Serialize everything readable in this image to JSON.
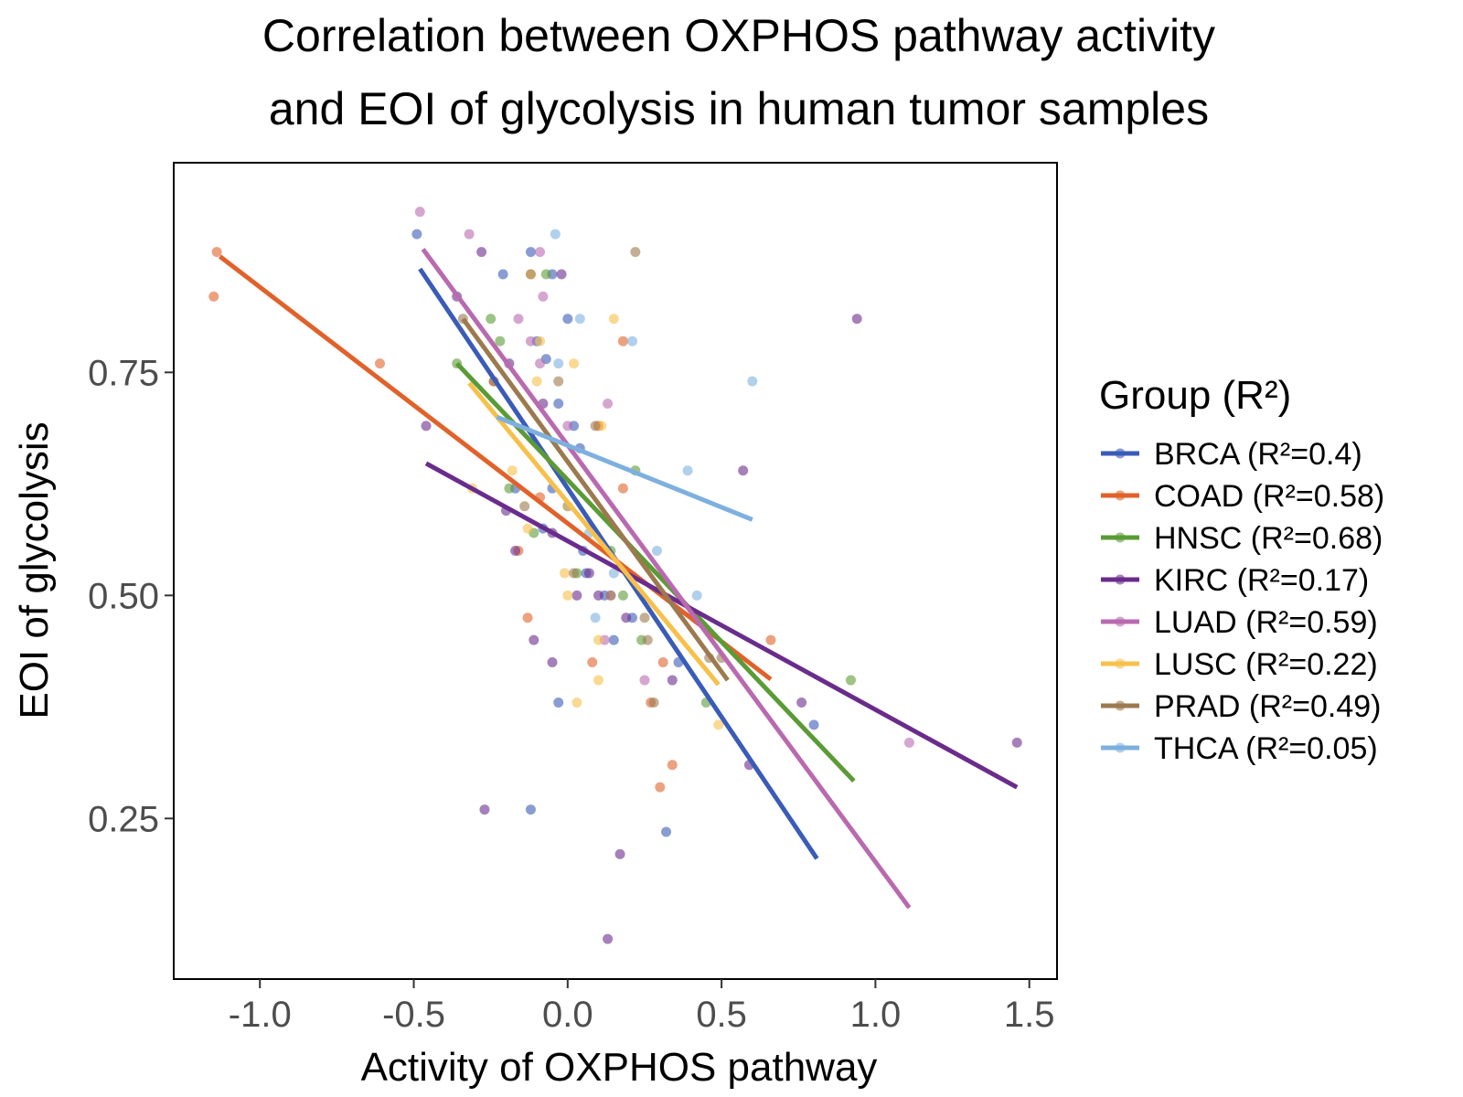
{
  "chart_data": {
    "type": "scatter",
    "title_lines": [
      "Correlation between OXPHOS pathway activity",
      "and EOI of glycolysis in human tumor samples"
    ],
    "xlabel": "Activity of OXPHOS pathway",
    "ylabel": "EOI of glycolysis",
    "xlim": [
      -1.28,
      1.59
    ],
    "ylim": [
      0.07,
      0.985
    ],
    "x_ticks": [
      -1.0,
      -0.5,
      0.0,
      0.5,
      1.0,
      1.5
    ],
    "x_tick_labels": [
      "-1.0",
      "-0.5",
      "0.0",
      "0.5",
      "1.0",
      "1.5"
    ],
    "y_ticks": [
      0.25,
      0.5,
      0.75
    ],
    "y_tick_labels": [
      "0.25",
      "0.50",
      "0.75"
    ],
    "grid": false,
    "legend_title": "Group (R²)",
    "legend_position": "right",
    "series": [
      {
        "name": "BRCA (R²=0.4)",
        "color": "#3a5cb8",
        "fit": [
          [
            -0.48,
            0.866
          ],
          [
            0.81,
            0.205
          ]
        ],
        "points": [
          [
            -0.49,
            0.905
          ],
          [
            -0.12,
            0.885
          ],
          [
            -0.21,
            0.86
          ],
          [
            -0.05,
            0.86
          ],
          [
            0.0,
            0.81
          ],
          [
            -0.1,
            0.785
          ],
          [
            -0.07,
            0.765
          ],
          [
            -0.03,
            0.715
          ],
          [
            0.02,
            0.69
          ],
          [
            0.04,
            0.665
          ],
          [
            -0.05,
            0.62
          ],
          [
            -0.17,
            0.62
          ],
          [
            0.0,
            0.6
          ],
          [
            -0.08,
            0.575
          ],
          [
            0.05,
            0.55
          ],
          [
            0.06,
            0.525
          ],
          [
            0.12,
            0.5
          ],
          [
            0.15,
            0.45
          ],
          [
            0.21,
            0.475
          ],
          [
            0.36,
            0.425
          ],
          [
            -0.03,
            0.38
          ],
          [
            0.8,
            0.355
          ],
          [
            -0.12,
            0.26
          ],
          [
            0.32,
            0.235
          ]
        ]
      },
      {
        "name": "COAD (R²=0.58)",
        "color": "#e0622a",
        "fit": [
          [
            -1.13,
            0.88
          ],
          [
            0.66,
            0.406
          ]
        ],
        "points": [
          [
            -1.14,
            0.885
          ],
          [
            -1.15,
            0.835
          ],
          [
            -0.61,
            0.76
          ],
          [
            -0.24,
            0.74
          ],
          [
            -0.09,
            0.61
          ],
          [
            -0.16,
            0.55
          ],
          [
            0.1,
            0.69
          ],
          [
            0.18,
            0.785
          ],
          [
            0.18,
            0.62
          ],
          [
            -0.13,
            0.475
          ],
          [
            0.08,
            0.425
          ],
          [
            0.27,
            0.38
          ],
          [
            0.31,
            0.425
          ],
          [
            0.66,
            0.45
          ],
          [
            0.34,
            0.31
          ],
          [
            0.3,
            0.285
          ]
        ]
      },
      {
        "name": "HNSC (R²=0.68)",
        "color": "#5b9b36",
        "fit": [
          [
            -0.36,
            0.76
          ],
          [
            0.93,
            0.292
          ]
        ],
        "points": [
          [
            -0.36,
            0.76
          ],
          [
            -0.25,
            0.81
          ],
          [
            -0.22,
            0.785
          ],
          [
            -0.07,
            0.86
          ],
          [
            -0.19,
            0.62
          ],
          [
            -0.11,
            0.57
          ],
          [
            0.03,
            0.525
          ],
          [
            0.18,
            0.5
          ],
          [
            0.14,
            0.55
          ],
          [
            0.22,
            0.64
          ],
          [
            0.24,
            0.45
          ],
          [
            0.45,
            0.38
          ],
          [
            0.92,
            0.405
          ]
        ]
      },
      {
        "name": "KIRC (R²=0.17)",
        "color": "#6a2c8c",
        "fit": [
          [
            -0.46,
            0.648
          ],
          [
            1.46,
            0.285
          ]
        ],
        "points": [
          [
            -0.28,
            0.885
          ],
          [
            -0.36,
            0.835
          ],
          [
            -0.46,
            0.69
          ],
          [
            -0.19,
            0.76
          ],
          [
            -0.08,
            0.715
          ],
          [
            -0.02,
            0.86
          ],
          [
            -0.2,
            0.595
          ],
          [
            -0.17,
            0.55
          ],
          [
            -0.05,
            0.57
          ],
          [
            0.07,
            0.525
          ],
          [
            0.1,
            0.5
          ],
          [
            0.19,
            0.475
          ],
          [
            0.03,
            0.5
          ],
          [
            -0.11,
            0.45
          ],
          [
            -0.05,
            0.425
          ],
          [
            0.34,
            0.405
          ],
          [
            0.57,
            0.64
          ],
          [
            0.59,
            0.31
          ],
          [
            0.76,
            0.38
          ],
          [
            0.94,
            0.81
          ],
          [
            1.46,
            0.335
          ],
          [
            -0.27,
            0.26
          ],
          [
            0.17,
            0.21
          ],
          [
            0.13,
            0.115
          ]
        ]
      },
      {
        "name": "LUAD (R²=0.59)",
        "color": "#b96aaf",
        "fit": [
          [
            -0.47,
            0.888
          ],
          [
            1.11,
            0.15
          ]
        ],
        "points": [
          [
            -0.48,
            0.93
          ],
          [
            -0.32,
            0.905
          ],
          [
            -0.09,
            0.885
          ],
          [
            -0.08,
            0.835
          ],
          [
            -0.16,
            0.81
          ],
          [
            -0.12,
            0.785
          ],
          [
            -0.09,
            0.76
          ],
          [
            0.13,
            0.715
          ],
          [
            0.0,
            0.69
          ],
          [
            0.12,
            0.45
          ],
          [
            0.14,
            0.5
          ],
          [
            0.25,
            0.405
          ],
          [
            1.11,
            0.335
          ]
        ]
      },
      {
        "name": "LUSC (R²=0.22)",
        "color": "#f7c04a",
        "fit": [
          [
            -0.32,
            0.738
          ],
          [
            0.49,
            0.4
          ]
        ],
        "points": [
          [
            -0.12,
            0.86
          ],
          [
            -0.09,
            0.785
          ],
          [
            -0.1,
            0.74
          ],
          [
            0.15,
            0.81
          ],
          [
            0.02,
            0.76
          ],
          [
            -0.31,
            0.62
          ],
          [
            -0.18,
            0.64
          ],
          [
            0.11,
            0.69
          ],
          [
            0.0,
            0.6
          ],
          [
            -0.01,
            0.525
          ],
          [
            0.0,
            0.5
          ],
          [
            0.03,
            0.38
          ],
          [
            0.1,
            0.45
          ],
          [
            0.1,
            0.405
          ],
          [
            0.49,
            0.355
          ],
          [
            -0.13,
            0.575
          ]
        ]
      },
      {
        "name": "PRAD (R²=0.49)",
        "color": "#9c7a4e",
        "fit": [
          [
            -0.34,
            0.81
          ],
          [
            0.52,
            0.405
          ]
        ],
        "points": [
          [
            -0.34,
            0.81
          ],
          [
            -0.24,
            0.74
          ],
          [
            -0.03,
            0.74
          ],
          [
            -0.12,
            0.86
          ],
          [
            -0.14,
            0.6
          ],
          [
            0.02,
            0.525
          ],
          [
            0.09,
            0.69
          ],
          [
            0.25,
            0.475
          ],
          [
            0.26,
            0.45
          ],
          [
            0.28,
            0.38
          ],
          [
            0.46,
            0.43
          ],
          [
            0.5,
            0.43
          ],
          [
            0.22,
            0.885
          ],
          [
            0.14,
            0.5
          ]
        ]
      },
      {
        "name": "THCA (R²=0.05)",
        "color": "#7db0df",
        "fit": [
          [
            -0.23,
            0.7
          ],
          [
            0.6,
            0.585
          ]
        ],
        "points": [
          [
            -0.04,
            0.905
          ],
          [
            0.04,
            0.81
          ],
          [
            0.21,
            0.785
          ],
          [
            -0.03,
            0.76
          ],
          [
            0.6,
            0.74
          ],
          [
            0.39,
            0.64
          ],
          [
            0.29,
            0.55
          ],
          [
            0.42,
            0.5
          ],
          [
            0.15,
            0.525
          ],
          [
            0.09,
            0.475
          ],
          [
            0.07,
            0.57
          ]
        ]
      }
    ]
  }
}
